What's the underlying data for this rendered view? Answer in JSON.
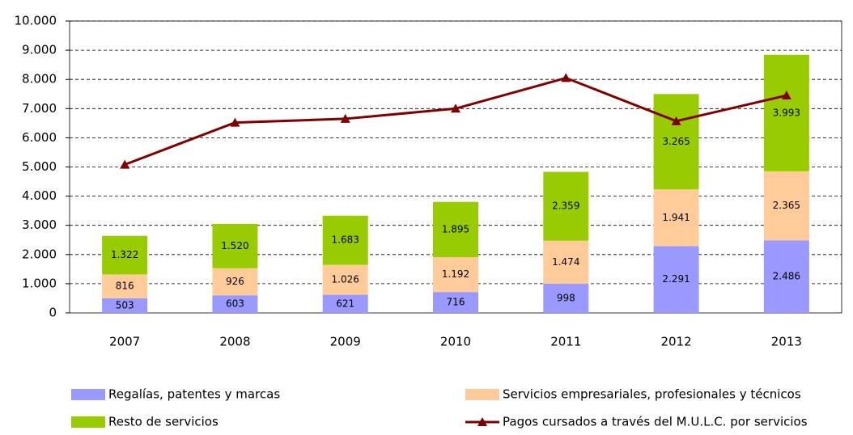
{
  "chart_data": {
    "type": "bar",
    "stacked": true,
    "categories": [
      "2007",
      "2008",
      "2009",
      "2010",
      "2011",
      "2012",
      "2013"
    ],
    "series": [
      {
        "name": "Regalías, patentes y marcas",
        "color": "#9999ff",
        "values": [
          503,
          603,
          621,
          716,
          998,
          2291,
          2486
        ],
        "value_labels": [
          "503",
          "603",
          "621",
          "716",
          "998",
          "2.291",
          "2.486"
        ]
      },
      {
        "name": "Servicios empresariales, profesionales y técnicos",
        "color": "#ffcc99",
        "values": [
          816,
          926,
          1026,
          1192,
          1474,
          1941,
          2365
        ],
        "value_labels": [
          "816",
          "926",
          "1.026",
          "1.192",
          "1.474",
          "1.941",
          "2.365"
        ]
      },
      {
        "name": "Resto de servicios",
        "color": "#99cc00",
        "values": [
          1322,
          1520,
          1683,
          1895,
          2359,
          3265,
          3993
        ],
        "value_labels": [
          "1.322",
          "1.520",
          "1.683",
          "1.895",
          "2.359",
          "3.265",
          "3.993"
        ]
      },
      {
        "name": "Pagos cursados a través del M.U.L.C. por servicios",
        "type": "line",
        "marker": "triangle",
        "color": "#800000",
        "values": [
          5080,
          6520,
          6650,
          7000,
          8050,
          6570,
          7450
        ]
      }
    ],
    "ylim": [
      0,
      10000
    ],
    "yticks": [
      0,
      {
        "value": 1000,
        "label": "1.000"
      },
      {
        "value": 2000,
        "label": "2.000"
      },
      {
        "value": 3000,
        "label": "3.000"
      },
      {
        "value": 4000,
        "label": "4.000"
      },
      {
        "value": 5000,
        "label": "5.000"
      },
      {
        "value": 6000,
        "label": "6.000"
      },
      {
        "value": 7000,
        "label": "7.000"
      },
      {
        "value": 8000,
        "label": "8.000"
      },
      {
        "value": 9000,
        "label": "9.000"
      },
      {
        "value": 10000,
        "label": "10.000"
      }
    ],
    "grid": true,
    "legend": "bottom"
  }
}
